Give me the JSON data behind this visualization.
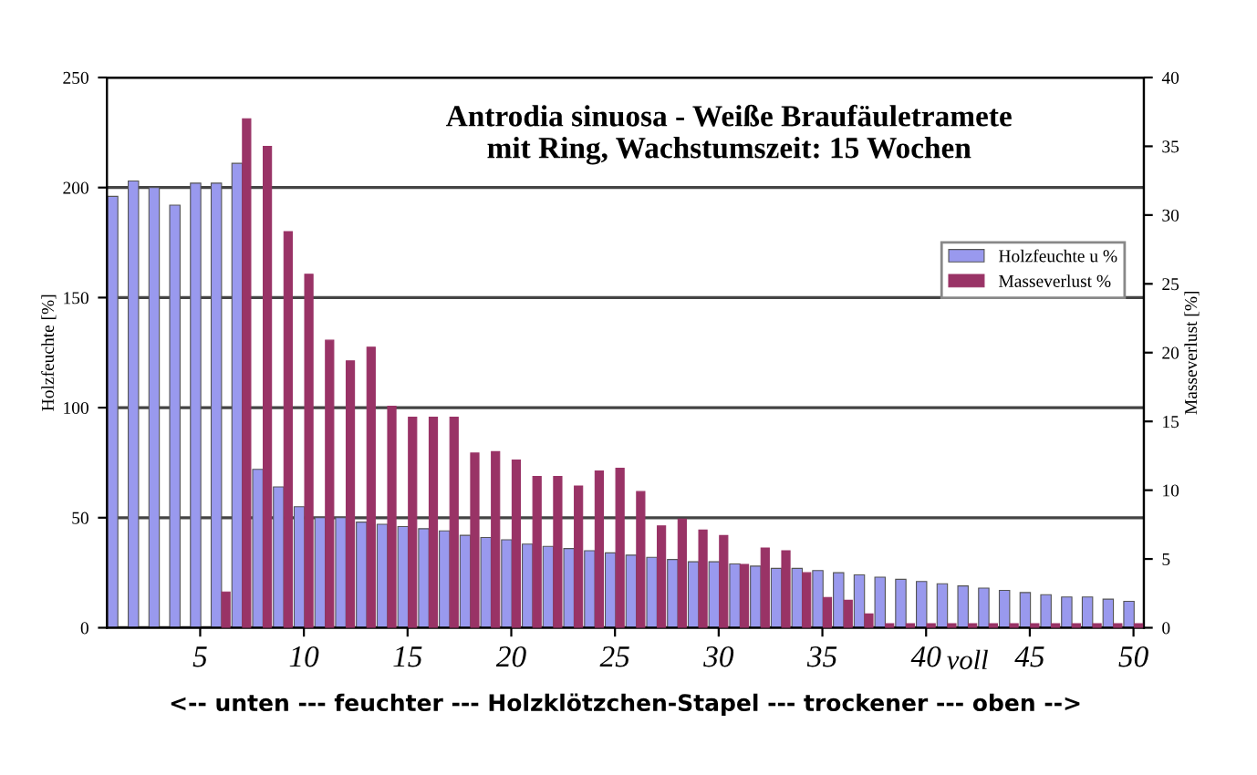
{
  "chart_data": {
    "type": "bar",
    "title": "Antrodia sinuosa - Weiße Braufäuletramete\nmit Ring, Wachstumszeit: 15 Wochen",
    "xlabel": "<-- unten --- feuchter --- Holzklötzchen-Stapel --- trockener --- oben -->",
    "ylabel": "Holzfeuchte [%]",
    "y2label": "Masseverlust [%]",
    "x": [
      1,
      2,
      3,
      4,
      5,
      6,
      7,
      8,
      9,
      10,
      11,
      12,
      13,
      14,
      15,
      16,
      17,
      18,
      19,
      20,
      21,
      22,
      23,
      24,
      25,
      26,
      27,
      28,
      29,
      30,
      31,
      32,
      33,
      34,
      35,
      36,
      37,
      38,
      39,
      40,
      41,
      42,
      43,
      44,
      45,
      46,
      47,
      48,
      49,
      50
    ],
    "series": [
      {
        "name": "Holzfeuchte u %",
        "color": "#9999ee",
        "values": [
          196,
          203,
          200,
          192,
          202,
          202,
          211,
          72,
          64,
          55,
          50,
          50,
          48,
          47,
          46,
          45,
          44,
          42,
          41,
          40,
          38,
          37,
          36,
          35,
          34,
          33,
          32,
          31,
          30,
          30,
          29,
          28,
          27,
          27,
          26,
          25,
          24,
          23,
          22,
          21,
          20,
          19,
          18,
          17,
          16,
          15,
          14,
          14,
          13,
          12
        ]
      },
      {
        "name": "Masseverlust %",
        "color": "#993366",
        "axis": "y2",
        "values": [
          null,
          null,
          null,
          null,
          null,
          2.6,
          37,
          35,
          28.8,
          25.7,
          20.9,
          19.4,
          20.4,
          16.1,
          15.3,
          15.3,
          15.3,
          12.7,
          12.8,
          12.2,
          11,
          11,
          10.3,
          11.4,
          11.6,
          9.9,
          7.4,
          7.9,
          7.1,
          6.7,
          4.6,
          5.8,
          5.6,
          4,
          2.2,
          2,
          1,
          0.3,
          0.3,
          0.3,
          0.3,
          0.3,
          0.3,
          0.3,
          0.3,
          0.3,
          0.3,
          0.3,
          0.3,
          0.3
        ]
      }
    ],
    "xlim": [
      0.5,
      50.5
    ],
    "xticks": [
      5,
      10,
      15,
      20,
      25,
      30,
      35,
      40,
      45,
      50
    ],
    "ylim": [
      0,
      250
    ],
    "yticks": [
      0,
      50,
      100,
      150,
      200,
      250
    ],
    "y2lim": [
      0,
      40
    ],
    "y2ticks": [
      0,
      5,
      10,
      15,
      20,
      25,
      30,
      35,
      40
    ],
    "grid": "y",
    "legend": "right",
    "annotations": [
      "voll"
    ]
  }
}
